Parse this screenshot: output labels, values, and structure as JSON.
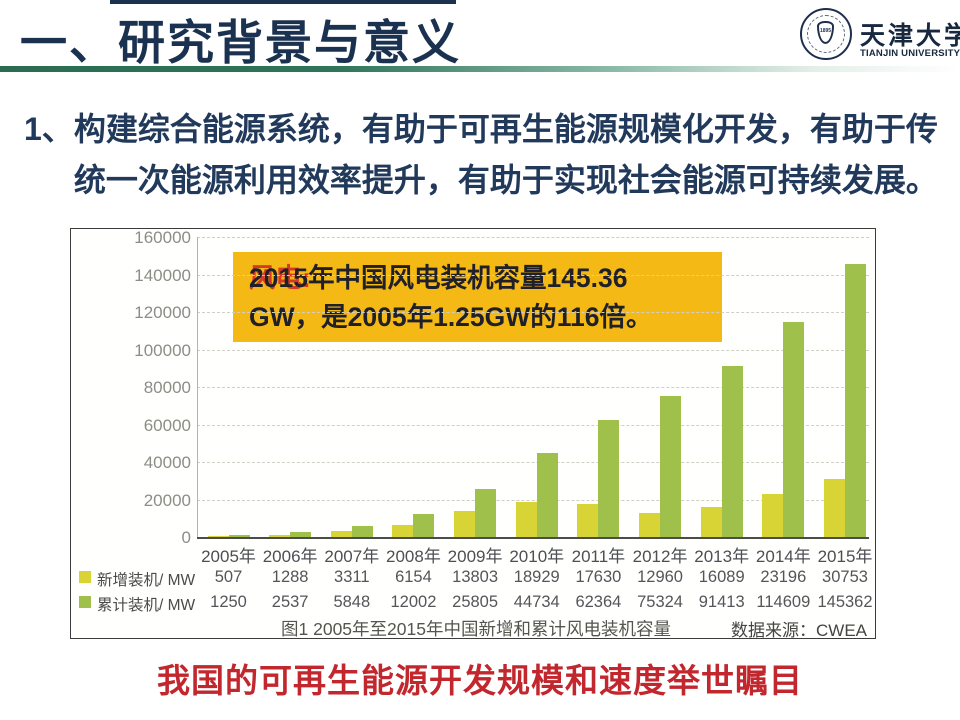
{
  "header": {
    "title": "一、研究背景与意义",
    "logo": {
      "seal_year": "1895",
      "name_zh": "天津大学",
      "name_en": "TIANJIN UNIVERSITY",
      "color": "#1d2f4e"
    }
  },
  "body": {
    "marker": "1、",
    "line1": "构建综合能源系统，有助于可再生能源规模化开发，有助于传",
    "line2": "统一次能源利用效率提升，有助于实现社会能源可持续发展。",
    "color": "#21395a"
  },
  "callout": {
    "label": "风电:",
    "text_line1": "2015年中国风电装机容量145.36",
    "text_line2": "GW，是2005年1.25GW的116倍。",
    "bg_color": "#F5B915",
    "label_color": "#D93826",
    "text_color": "#20202a"
  },
  "chart_data": {
    "type": "bar",
    "title": "图1 2005年至2015年中国新增和累计风电装机容量",
    "source": "数据来源：CWEA",
    "categories": [
      "2005年",
      "2006年",
      "2007年",
      "2008年",
      "2009年",
      "2010年",
      "2011年",
      "2012年",
      "2013年",
      "2014年",
      "2015年"
    ],
    "series": [
      {
        "name": "新增装机/ MW",
        "color": "#d9d435",
        "values": [
          507,
          1288,
          3311,
          6154,
          13803,
          18929,
          17630,
          12960,
          16089,
          23196,
          30753
        ]
      },
      {
        "name": "累计装机/ MW",
        "color": "#9fc04a",
        "values": [
          1250,
          2537,
          5848,
          12002,
          25805,
          44734,
          62364,
          75324,
          91413,
          114609,
          145362
        ]
      }
    ],
    "xlabel": "",
    "ylabel": "",
    "ylim": [
      0,
      160000
    ],
    "yticks": [
      0,
      20000,
      40000,
      60000,
      80000,
      100000,
      120000,
      140000,
      160000
    ],
    "grid": true,
    "legend_position": "table-left"
  },
  "footer": {
    "text": "我国的可再生能源开发规模和速度举世瞩目",
    "color": "#C1272D"
  }
}
